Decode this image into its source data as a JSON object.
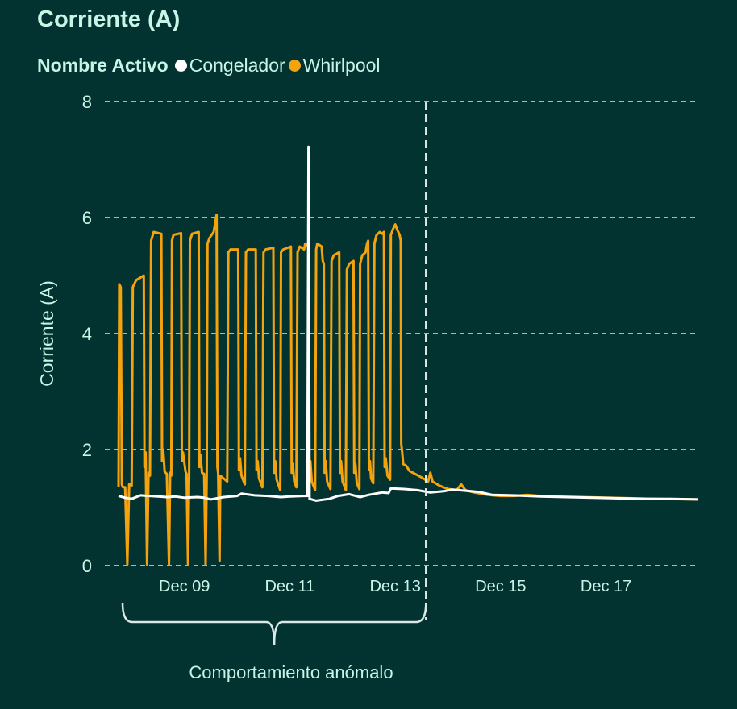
{
  "chart_data": {
    "type": "line",
    "title": "Corriente (A)",
    "ylabel": "Corriente (A)",
    "xlabel": "",
    "ylim": [
      0,
      8
    ],
    "y_ticks": [
      0,
      2,
      4,
      6,
      8
    ],
    "x_range": [
      "2021-12-07T18:00",
      "2021-12-18T18:00"
    ],
    "x_ticks": [
      {
        "date": "2021-12-09",
        "label": "Dec 09"
      },
      {
        "date": "2021-12-11",
        "label": "Dec 11"
      },
      {
        "date": "2021-12-13",
        "label": "Dec 13"
      },
      {
        "date": "2021-12-15",
        "label": "Dec 15"
      },
      {
        "date": "2021-12-17",
        "label": "Dec 17"
      }
    ],
    "grid": "horizontal-dashed",
    "legend": {
      "title": "Nombre Activo",
      "position": "top-left"
    },
    "series": [
      {
        "name": "Congelador",
        "color": "#ffffff",
        "points": [
          [
            "2021-12-07T18:00",
            1.2
          ],
          [
            "2021-12-07T21:00",
            1.17
          ],
          [
            "2021-12-08T00:00",
            1.15
          ],
          [
            "2021-12-08T04:00",
            1.21
          ],
          [
            "2021-12-08T08:00",
            1.2
          ],
          [
            "2021-12-08T12:00",
            1.19
          ],
          [
            "2021-12-08T16:00",
            1.18
          ],
          [
            "2021-12-08T20:00",
            1.19
          ],
          [
            "2021-12-09T00:00",
            1.17
          ],
          [
            "2021-12-09T06:00",
            1.18
          ],
          [
            "2021-12-09T09:00",
            1.17
          ],
          [
            "2021-12-09T12:00",
            1.14
          ],
          [
            "2021-12-09T18:00",
            1.18
          ],
          [
            "2021-12-10T00:00",
            1.2
          ],
          [
            "2021-12-10T02:00",
            1.24
          ],
          [
            "2021-12-10T08:00",
            1.21
          ],
          [
            "2021-12-10T14:00",
            1.2
          ],
          [
            "2021-12-10T20:00",
            1.18
          ],
          [
            "2021-12-11T00:00",
            1.19
          ],
          [
            "2021-12-11T06:00",
            1.2
          ],
          [
            "2021-12-11T08:00",
            1.2
          ],
          [
            "2021-12-11T08:30",
            7.22
          ],
          [
            "2021-12-11T09:00",
            1.15
          ],
          [
            "2021-12-11T12:00",
            1.12
          ],
          [
            "2021-12-11T18:00",
            1.15
          ],
          [
            "2021-12-11T22:00",
            1.2
          ],
          [
            "2021-12-12T03:00",
            1.23
          ],
          [
            "2021-12-12T08:00",
            1.18
          ],
          [
            "2021-12-12T12:00",
            1.22
          ],
          [
            "2021-12-12T18:00",
            1.26
          ],
          [
            "2021-12-12T21:00",
            1.25
          ],
          [
            "2021-12-12T22:00",
            1.33
          ],
          [
            "2021-12-13T04:00",
            1.32
          ],
          [
            "2021-12-13T10:00",
            1.3
          ],
          [
            "2021-12-13T16:00",
            1.26
          ],
          [
            "2021-12-13T22:00",
            1.28
          ],
          [
            "2021-12-14T02:00",
            1.31
          ],
          [
            "2021-12-14T08:00",
            1.29
          ],
          [
            "2021-12-14T14:00",
            1.27
          ],
          [
            "2021-12-14T20:00",
            1.22
          ],
          [
            "2021-12-15T06:00",
            1.21
          ],
          [
            "2021-12-15T18:00",
            1.19
          ],
          [
            "2021-12-16T06:00",
            1.18
          ],
          [
            "2021-12-16T18:00",
            1.17
          ],
          [
            "2021-12-17T06:00",
            1.16
          ],
          [
            "2021-12-17T18:00",
            1.15
          ],
          [
            "2021-12-18T06:00",
            1.15
          ],
          [
            "2021-12-18T18:00",
            1.14
          ]
        ]
      },
      {
        "name": "Whirlpool",
        "color": "#f5a20f",
        "points": [
          [
            "2021-12-07T18:00",
            1.35
          ],
          [
            "2021-12-07T18:20",
            4.85
          ],
          [
            "2021-12-07T19:00",
            4.8
          ],
          [
            "2021-12-07T19:30",
            1.4
          ],
          [
            "2021-12-07T20:00",
            1.35
          ],
          [
            "2021-12-07T21:00",
            1.35
          ],
          [
            "2021-12-07T22:00",
            0.02
          ],
          [
            "2021-12-07T22:50",
            1.4
          ],
          [
            "2021-12-08T00:00",
            1.38
          ],
          [
            "2021-12-08T00:30",
            4.8
          ],
          [
            "2021-12-08T02:00",
            4.92
          ],
          [
            "2021-12-08T05:30",
            5.0
          ],
          [
            "2021-12-08T05:50",
            1.7
          ],
          [
            "2021-12-08T06:20",
            1.95
          ],
          [
            "2021-12-08T07:00",
            0.02
          ],
          [
            "2021-12-08T07:40",
            1.6
          ],
          [
            "2021-12-08T08:20",
            1.55
          ],
          [
            "2021-12-08T08:50",
            5.6
          ],
          [
            "2021-12-08T10:00",
            5.75
          ],
          [
            "2021-12-08T13:30",
            5.72
          ],
          [
            "2021-12-08T13:50",
            1.8
          ],
          [
            "2021-12-08T14:20",
            2.0
          ],
          [
            "2021-12-08T15:00",
            1.62
          ],
          [
            "2021-12-08T16:00",
            1.58
          ],
          [
            "2021-12-08T17:00",
            0.02
          ],
          [
            "2021-12-08T17:30",
            1.6
          ],
          [
            "2021-12-08T18:00",
            1.55
          ],
          [
            "2021-12-08T18:20",
            5.6
          ],
          [
            "2021-12-08T19:00",
            5.7
          ],
          [
            "2021-12-08T22:30",
            5.73
          ],
          [
            "2021-12-08T22:50",
            1.8
          ],
          [
            "2021-12-08T23:20",
            1.95
          ],
          [
            "2021-12-09T00:30",
            1.62
          ],
          [
            "2021-12-09T01:00",
            1.58
          ],
          [
            "2021-12-09T01:40",
            0.02
          ],
          [
            "2021-12-09T02:10",
            1.58
          ],
          [
            "2021-12-09T02:30",
            5.6
          ],
          [
            "2021-12-09T03:30",
            5.72
          ],
          [
            "2021-12-09T06:30",
            5.75
          ],
          [
            "2021-12-09T06:50",
            1.7
          ],
          [
            "2021-12-09T07:20",
            1.9
          ],
          [
            "2021-12-09T08:00",
            1.6
          ],
          [
            "2021-12-09T09:00",
            1.58
          ],
          [
            "2021-12-09T09:40",
            0.02
          ],
          [
            "2021-12-09T10:10",
            1.58
          ],
          [
            "2021-12-09T10:30",
            5.55
          ],
          [
            "2021-12-09T11:30",
            5.65
          ],
          [
            "2021-12-09T13:20",
            5.75
          ],
          [
            "2021-12-09T14:00",
            5.9
          ],
          [
            "2021-12-09T14:40",
            6.05
          ],
          [
            "2021-12-09T15:00",
            1.7
          ],
          [
            "2021-12-09T15:20",
            1.6
          ],
          [
            "2021-12-09T16:00",
            0.08
          ],
          [
            "2021-12-09T16:20",
            1.55
          ],
          [
            "2021-12-09T19:30",
            1.45
          ],
          [
            "2021-12-09T20:00",
            5.4
          ],
          [
            "2021-12-09T21:00",
            5.45
          ],
          [
            "2021-12-10T00:30",
            5.45
          ],
          [
            "2021-12-10T00:50",
            1.65
          ],
          [
            "2021-12-10T01:20",
            1.85
          ],
          [
            "2021-12-10T02:00",
            1.55
          ],
          [
            "2021-12-10T03:30",
            1.4
          ],
          [
            "2021-12-10T04:00",
            5.4
          ],
          [
            "2021-12-10T05:00",
            5.45
          ],
          [
            "2021-12-10T08:30",
            5.45
          ],
          [
            "2021-12-10T08:50",
            1.65
          ],
          [
            "2021-12-10T09:20",
            1.8
          ],
          [
            "2021-12-10T10:00",
            1.5
          ],
          [
            "2021-12-10T11:30",
            1.35
          ],
          [
            "2021-12-10T12:00",
            5.4
          ],
          [
            "2021-12-10T13:00",
            5.45
          ],
          [
            "2021-12-10T16:30",
            5.48
          ],
          [
            "2021-12-10T16:50",
            1.6
          ],
          [
            "2021-12-10T17:20",
            1.8
          ],
          [
            "2021-12-10T18:00",
            1.48
          ],
          [
            "2021-12-10T19:40",
            1.3
          ],
          [
            "2021-12-10T20:00",
            5.4
          ],
          [
            "2021-12-10T21:00",
            5.45
          ],
          [
            "2021-12-11T00:30",
            5.5
          ],
          [
            "2021-12-11T00:50",
            1.6
          ],
          [
            "2021-12-11T01:20",
            1.75
          ],
          [
            "2021-12-11T02:00",
            1.45
          ],
          [
            "2021-12-11T03:00",
            1.35
          ],
          [
            "2021-12-11T03:30",
            5.4
          ],
          [
            "2021-12-11T04:30",
            5.5
          ],
          [
            "2021-12-11T06:30",
            5.45
          ],
          [
            "2021-12-11T07:00",
            5.55
          ],
          [
            "2021-12-11T08:00",
            5.52
          ],
          [
            "2021-12-11T08:30",
            5.55
          ],
          [
            "2021-12-11T08:50",
            1.6
          ],
          [
            "2021-12-11T09:20",
            1.8
          ],
          [
            "2021-12-11T10:00",
            1.45
          ],
          [
            "2021-12-11T11:30",
            1.3
          ],
          [
            "2021-12-11T12:00",
            5.45
          ],
          [
            "2021-12-11T12:30",
            5.55
          ],
          [
            "2021-12-11T14:30",
            5.5
          ],
          [
            "2021-12-11T15:00",
            5.25
          ],
          [
            "2021-12-11T15:30",
            5.2
          ],
          [
            "2021-12-11T15:50",
            1.6
          ],
          [
            "2021-12-11T16:20",
            1.8
          ],
          [
            "2021-12-11T17:00",
            1.45
          ],
          [
            "2021-12-11T18:30",
            1.32
          ],
          [
            "2021-12-11T19:00",
            5.25
          ],
          [
            "2021-12-11T20:00",
            5.35
          ],
          [
            "2021-12-11T22:30",
            5.4
          ],
          [
            "2021-12-11T22:50",
            1.6
          ],
          [
            "2021-12-11T23:20",
            1.8
          ],
          [
            "2021-12-12T00:00",
            1.45
          ],
          [
            "2021-12-12T01:30",
            1.3
          ],
          [
            "2021-12-12T02:00",
            5.1
          ],
          [
            "2021-12-12T03:00",
            5.2
          ],
          [
            "2021-12-12T05:00",
            5.25
          ],
          [
            "2021-12-12T05:20",
            1.6
          ],
          [
            "2021-12-12T05:50",
            1.75
          ],
          [
            "2021-12-12T06:30",
            1.42
          ],
          [
            "2021-12-12T07:40",
            1.32
          ],
          [
            "2021-12-12T08:00",
            5.2
          ],
          [
            "2021-12-12T09:00",
            5.35
          ],
          [
            "2021-12-12T10:30",
            5.4
          ],
          [
            "2021-12-12T11:10",
            5.55
          ],
          [
            "2021-12-12T11:40",
            5.6
          ],
          [
            "2021-12-12T12:00",
            1.65
          ],
          [
            "2021-12-12T12:30",
            1.8
          ],
          [
            "2021-12-12T13:00",
            1.5
          ],
          [
            "2021-12-12T14:00",
            1.42
          ],
          [
            "2021-12-12T14:30",
            5.55
          ],
          [
            "2021-12-12T15:30",
            5.7
          ],
          [
            "2021-12-12T17:00",
            5.75
          ],
          [
            "2021-12-12T18:00",
            5.72
          ],
          [
            "2021-12-12T18:50",
            5.75
          ],
          [
            "2021-12-12T19:10",
            1.7
          ],
          [
            "2021-12-12T19:40",
            1.85
          ],
          [
            "2021-12-12T20:30",
            1.55
          ],
          [
            "2021-12-12T21:40",
            1.48
          ],
          [
            "2021-12-12T22:00",
            5.7
          ],
          [
            "2021-12-12T23:00",
            5.8
          ],
          [
            "2021-12-13T00:00",
            5.88
          ],
          [
            "2021-12-13T01:00",
            5.78
          ],
          [
            "2021-12-13T02:00",
            5.7
          ],
          [
            "2021-12-13T02:30",
            5.6
          ],
          [
            "2021-12-13T02:45",
            2.1
          ],
          [
            "2021-12-13T03:10",
            1.95
          ],
          [
            "2021-12-13T03:40",
            1.75
          ],
          [
            "2021-12-13T05:00",
            1.72
          ],
          [
            "2021-12-13T06:30",
            1.63
          ],
          [
            "2021-12-13T09:00",
            1.58
          ],
          [
            "2021-12-13T12:00",
            1.52
          ],
          [
            "2021-12-13T15:00",
            1.45
          ],
          [
            "2021-12-13T16:00",
            1.6
          ],
          [
            "2021-12-13T17:00",
            1.45
          ],
          [
            "2021-12-13T20:00",
            1.38
          ],
          [
            "2021-12-14T00:00",
            1.32
          ],
          [
            "2021-12-14T04:00",
            1.3
          ],
          [
            "2021-12-14T06:00",
            1.4
          ],
          [
            "2021-12-14T08:00",
            1.3
          ],
          [
            "2021-12-14T12:00",
            1.26
          ],
          [
            "2021-12-14T18:00",
            1.22
          ],
          [
            "2021-12-15T00:00",
            1.2
          ],
          [
            "2021-12-15T06:00",
            1.2
          ],
          [
            "2021-12-15T12:00",
            1.22
          ],
          [
            "2021-12-15T18:00",
            1.2
          ],
          [
            "2021-12-16T00:00",
            1.19
          ],
          [
            "2021-12-16T12:00",
            1.18
          ],
          [
            "2021-12-17T00:00",
            1.17
          ],
          [
            "2021-12-17T12:00",
            1.16
          ],
          [
            "2021-12-18T00:00",
            1.15
          ],
          [
            "2021-12-18T18:00",
            1.14
          ]
        ]
      }
    ],
    "annotations": [
      {
        "type": "vertical-dashed-line",
        "date": "2021-12-13T14:00"
      },
      {
        "type": "brace",
        "from": "2021-12-07T18:00",
        "to": "2021-12-13T14:00",
        "label": "Comportamiento anómalo"
      }
    ]
  },
  "colors": {
    "background": "#033331",
    "text": "#c8f5e6",
    "grid": "#dce8e4",
    "congelador": "#ffffff",
    "whirlpool": "#f5a20f"
  }
}
